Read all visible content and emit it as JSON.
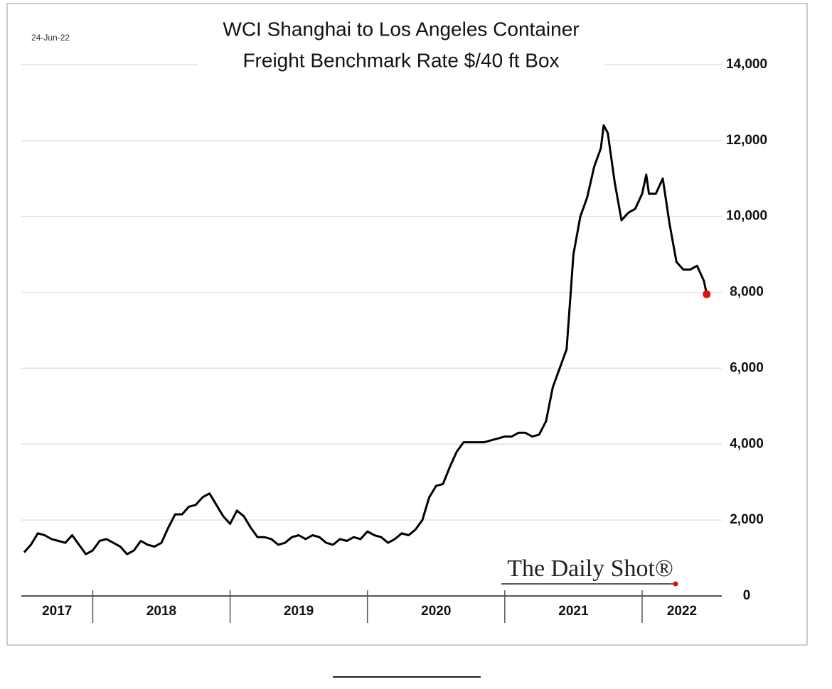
{
  "chart_data": {
    "type": "line",
    "title_lines": [
      "WCI Shanghai to Los Angeles Container",
      "Freight Benchmark Rate $/40 ft Box"
    ],
    "date_label": "24-Jun-22",
    "source_logo": "The Daily Shot®",
    "color": "#000000",
    "last_point_color": "#e01010",
    "grid": true,
    "xlim": [
      2017.48,
      2022.58
    ],
    "xticks": [
      2018,
      2019,
      2020,
      2021,
      2022
    ],
    "xtick_labels": [
      "2017",
      "2018",
      "2019",
      "2020",
      "2021",
      "2022"
    ],
    "ylim": [
      0,
      14000
    ],
    "yticks": [
      0,
      {
        "value": 2000,
        "label": "2,000"
      },
      {
        "value": 4000,
        "label": "4,000"
      },
      {
        "value": 6000,
        "label": "6,000"
      },
      {
        "value": 8000,
        "label": "8,000"
      },
      {
        "value": 10000,
        "label": "10,000"
      },
      {
        "value": 12000,
        "label": "12,000"
      },
      {
        "value": 14000,
        "label": "14,000"
      }
    ],
    "x": [
      2017.5,
      2017.55,
      2017.6,
      2017.65,
      2017.7,
      2017.75,
      2017.8,
      2017.85,
      2017.9,
      2017.95,
      2018.0,
      2018.05,
      2018.1,
      2018.15,
      2018.2,
      2018.25,
      2018.3,
      2018.35,
      2018.4,
      2018.45,
      2018.5,
      2018.55,
      2018.6,
      2018.65,
      2018.7,
      2018.75,
      2018.8,
      2018.85,
      2018.9,
      2018.95,
      2019.0,
      2019.05,
      2019.1,
      2019.15,
      2019.2,
      2019.25,
      2019.3,
      2019.35,
      2019.4,
      2019.45,
      2019.5,
      2019.55,
      2019.6,
      2019.65,
      2019.7,
      2019.75,
      2019.8,
      2019.85,
      2019.9,
      2019.95,
      2020.0,
      2020.05,
      2020.1,
      2020.15,
      2020.2,
      2020.25,
      2020.3,
      2020.35,
      2020.4,
      2020.45,
      2020.5,
      2020.55,
      2020.6,
      2020.65,
      2020.7,
      2020.75,
      2020.8,
      2020.85,
      2020.9,
      2020.95,
      2021.0,
      2021.05,
      2021.1,
      2021.15,
      2021.2,
      2021.25,
      2021.3,
      2021.35,
      2021.4,
      2021.45,
      2021.5,
      2021.55,
      2021.6,
      2021.65,
      2021.7,
      2021.72,
      2021.75,
      2021.8,
      2021.85,
      2021.9,
      2021.95,
      2022.0,
      2022.03,
      2022.05,
      2022.1,
      2022.15,
      2022.2,
      2022.25,
      2022.3,
      2022.35,
      2022.4,
      2022.45,
      2022.47
    ],
    "values": [
      1150,
      1350,
      1650,
      1600,
      1500,
      1450,
      1400,
      1600,
      1350,
      1100,
      1200,
      1450,
      1500,
      1400,
      1300,
      1100,
      1200,
      1450,
      1350,
      1300,
      1400,
      1800,
      2150,
      2150,
      2350,
      2400,
      2600,
      2700,
      2400,
      2100,
      1900,
      2250,
      2100,
      1800,
      1550,
      1550,
      1500,
      1350,
      1400,
      1550,
      1600,
      1500,
      1600,
      1550,
      1400,
      1350,
      1500,
      1450,
      1550,
      1500,
      1700,
      1600,
      1550,
      1400,
      1500,
      1650,
      1600,
      1750,
      2000,
      2600,
      2900,
      2950,
      3400,
      3800,
      4050,
      4050,
      4050,
      4050,
      4100,
      4150,
      4200,
      4200,
      4300,
      4300,
      4200,
      4250,
      4600,
      5500,
      6000,
      6500,
      9000,
      10000,
      10500,
      11300,
      11800,
      12400,
      12200,
      10900,
      9900,
      10100,
      10200,
      10600,
      11100,
      10600,
      10600,
      11000,
      9800,
      8800,
      8600,
      8600,
      8700,
      8300,
      7950
    ]
  }
}
